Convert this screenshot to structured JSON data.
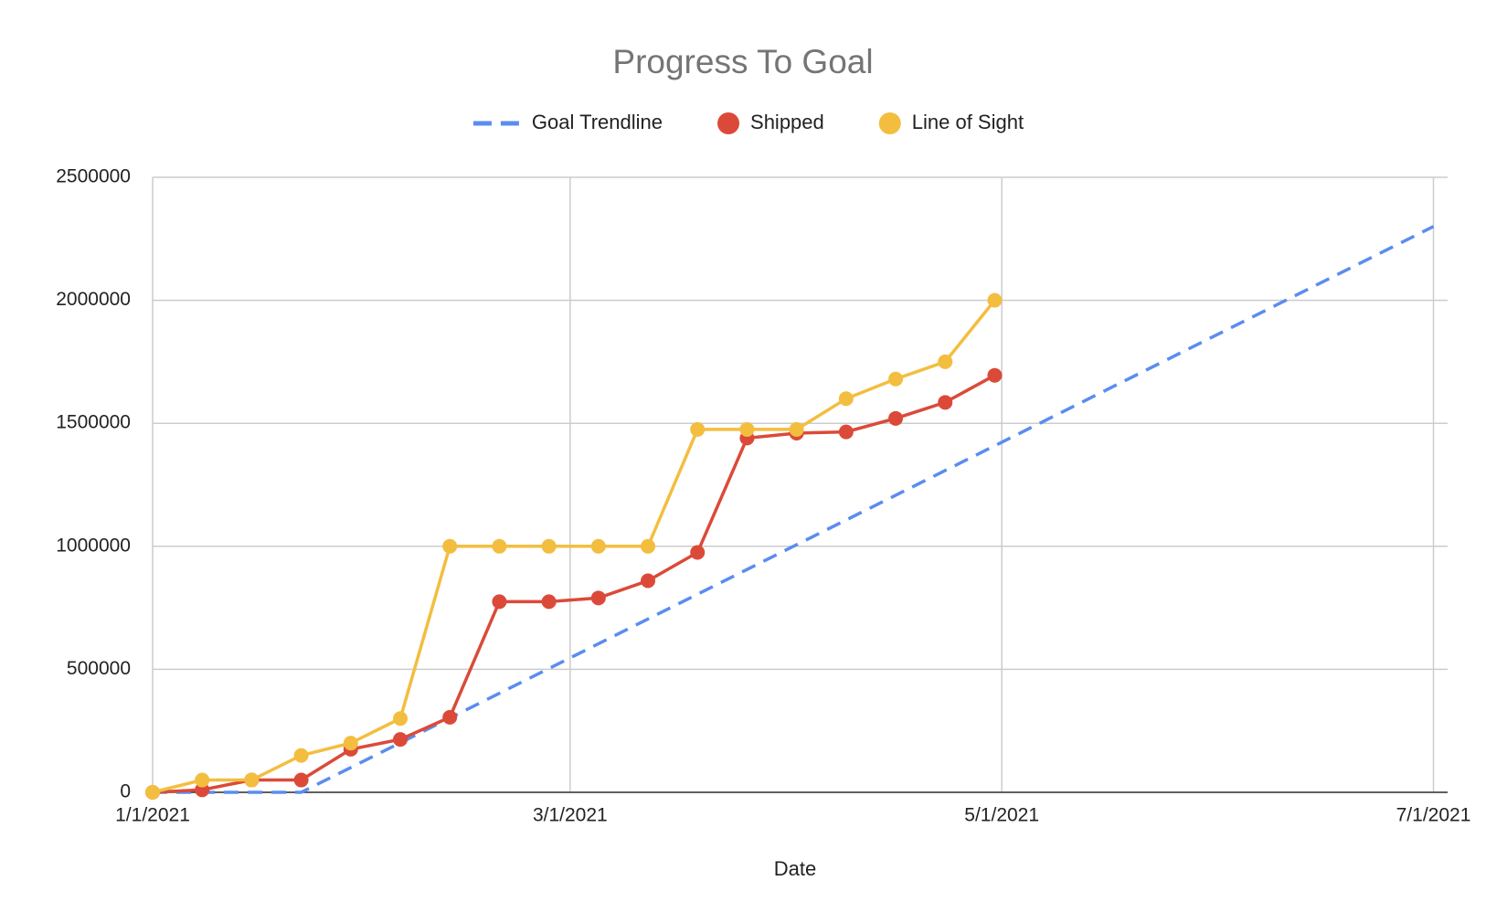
{
  "chart_data": {
    "type": "line",
    "title": "Progress To Goal",
    "x_label": "Date",
    "x": [
      "1/1/2021",
      "1/8/2021",
      "1/15/2021",
      "1/22/2021",
      "1/29/2021",
      "2/5/2021",
      "2/12/2021",
      "2/19/2021",
      "2/26/2021",
      "3/5/2021",
      "3/12/2021",
      "3/19/2021",
      "3/26/2021",
      "4/2/2021",
      "4/9/2021",
      "4/16/2021",
      "4/23/2021",
      "4/30/2021"
    ],
    "series": [
      {
        "name": "Goal Trendline",
        "color": "#5b8def",
        "dashed": true,
        "markers": false,
        "x": [
          "1/1/2021",
          "1/22/2021",
          "7/1/2021"
        ],
        "values": [
          0,
          0,
          2300000
        ]
      },
      {
        "name": "Shipped",
        "color": "#db4a39",
        "dashed": false,
        "markers": true,
        "values": [
          0,
          10000,
          50000,
          50000,
          175000,
          215000,
          305000,
          775000,
          775000,
          790000,
          860000,
          975000,
          1440000,
          1460000,
          1465000,
          1520000,
          1585000,
          1695000
        ]
      },
      {
        "name": "Line of Sight",
        "color": "#f3be3f",
        "dashed": false,
        "markers": true,
        "values": [
          0,
          50000,
          50000,
          150000,
          200000,
          300000,
          1000000,
          1000000,
          1000000,
          1000000,
          1000000,
          1475000,
          1475000,
          1475000,
          1600000,
          1680000,
          1750000,
          2000000
        ]
      }
    ],
    "xlim": [
      "1/1/2021",
      "7/3/2021"
    ],
    "xticks": [
      "1/1/2021",
      "3/1/2021",
      "5/1/2021",
      "7/1/2021"
    ],
    "ylim": [
      0,
      2500000
    ],
    "yticks": [
      0,
      500000,
      1000000,
      1500000,
      2000000,
      2500000
    ],
    "grid": true,
    "legend": "top"
  }
}
